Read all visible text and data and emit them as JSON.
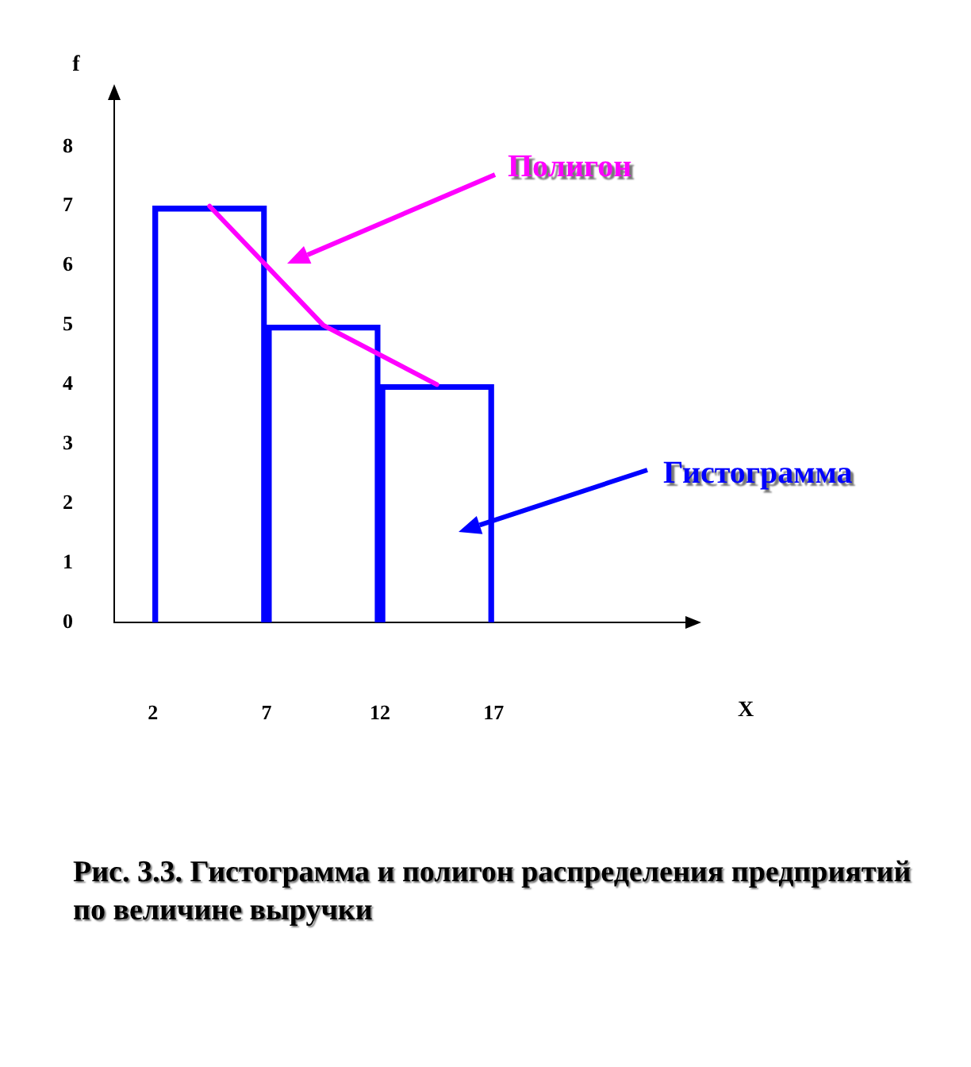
{
  "chart_data": {
    "type": "histogram",
    "bins": [
      2,
      7,
      12,
      17
    ],
    "values": [
      7,
      5,
      4
    ],
    "color": "#0000ff",
    "ylabel": "f",
    "xlim": [
      0.3,
      26
    ],
    "ylim": [
      0,
      9
    ],
    "xticks": [
      2,
      7,
      12,
      17
    ],
    "yticks": [
      0,
      1,
      2,
      3,
      4,
      5,
      6,
      7,
      8
    ],
    "series": [
      {
        "type": "line",
        "x": [
          4.5,
          9.5,
          14.5
        ],
        "values": [
          7,
          5,
          4
        ],
        "color": "#ff00ff"
      }
    ],
    "annotations": [
      "Полигон",
      "Гистограмма",
      "X",
      "Рис. 3.3. Гистограмма и полигон распределения предприятий по величине выручки"
    ]
  }
}
